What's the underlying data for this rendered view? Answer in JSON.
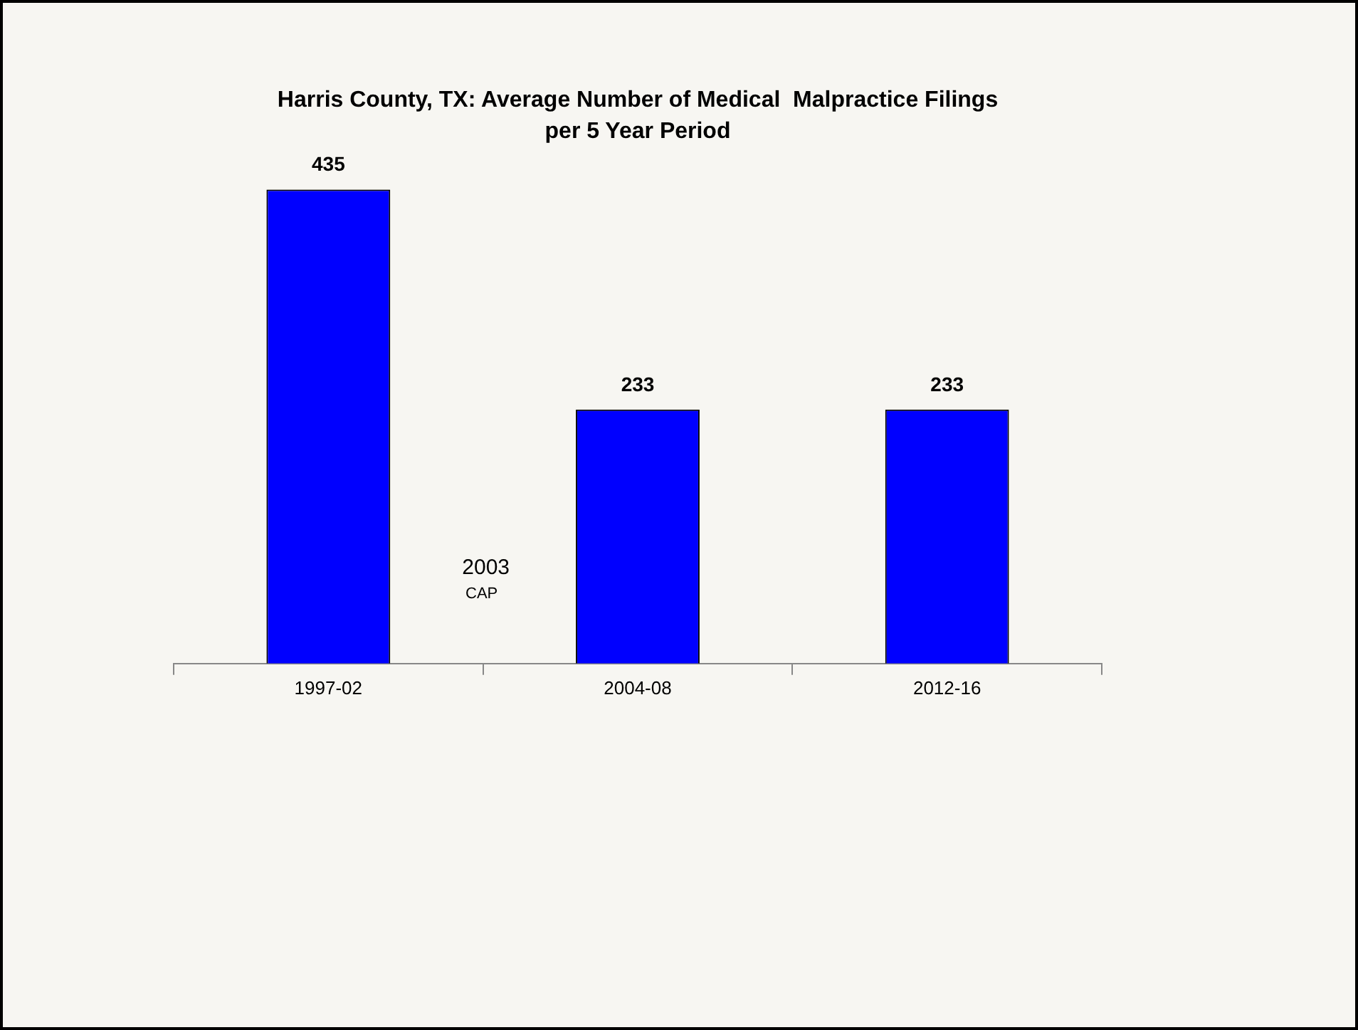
{
  "chart_data": {
    "type": "bar",
    "title": "Harris County, TX: Average Number of Medical  Malpractice Filings per 5 Year Period",
    "categories": [
      "1997-02",
      "2004-08",
      "2012-16"
    ],
    "values": [
      435,
      233,
      233
    ],
    "color": "#0000ff",
    "data_labels": true,
    "grid": false,
    "legend": false,
    "annotations": [
      "2003",
      "CAP"
    ]
  }
}
